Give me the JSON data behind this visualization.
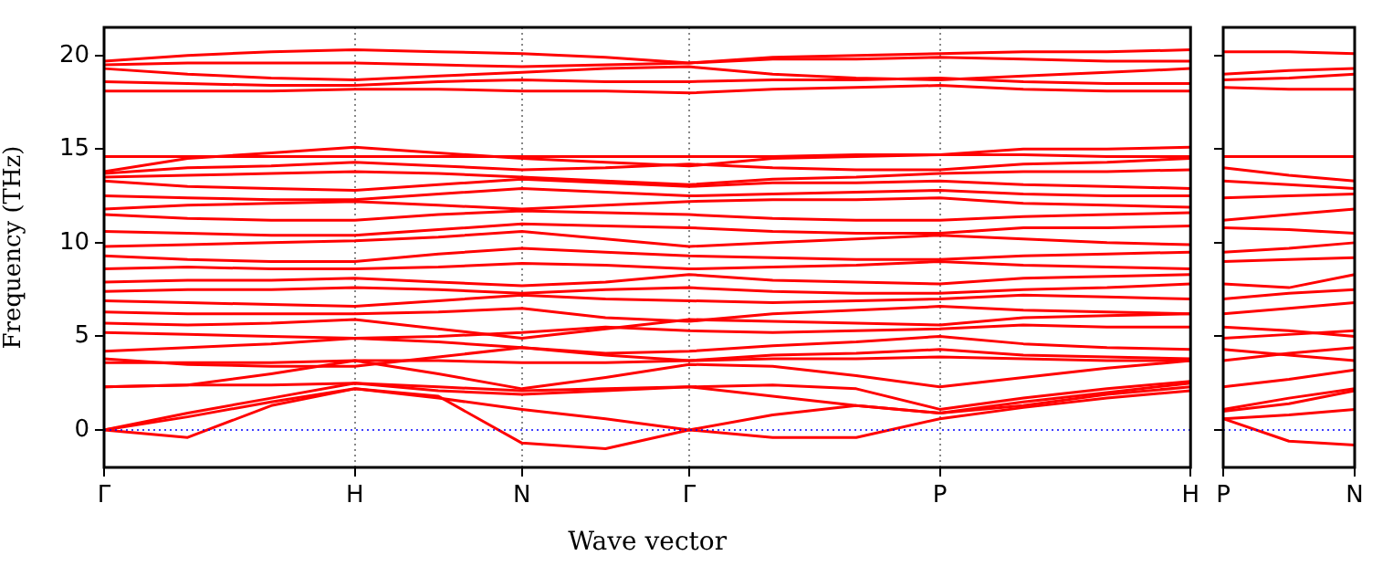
{
  "chart_data": [
    {
      "type": "line",
      "ylabel": "Frequency (THz)",
      "xlabel": "Wave vector",
      "ylim": [
        -2,
        21.5
      ],
      "categories": [
        "Γ",
        null,
        null,
        "H",
        null,
        "N",
        null,
        "Γ",
        null,
        null,
        "P",
        null,
        null,
        "H"
      ],
      "yticks": [
        0,
        5,
        10,
        15,
        20
      ],
      "grid": "x",
      "marker": "none",
      "line_style": "solid",
      "ref_lines": [
        {
          "axis": "y",
          "value": 0,
          "color": "#0000ff",
          "line_style": "dotted"
        }
      ],
      "series": [
        {
          "color": "#ff0000",
          "values": [
            0,
            -0.4,
            1.3,
            2.2,
            1.8,
            -0.7,
            -1.0,
            0,
            -0.4,
            -0.4,
            0.6,
            1.2,
            1.7,
            2.1
          ]
        },
        {
          "color": "#ff0000",
          "values": [
            0,
            0.7,
            1.5,
            2.2,
            1.7,
            1.1,
            0.6,
            0,
            0.8,
            1.3,
            0.9,
            1.5,
            2.0,
            2.5
          ]
        },
        {
          "color": "#ff0000",
          "values": [
            0,
            0.9,
            1.7,
            2.5,
            2.1,
            1.9,
            2.1,
            2.3,
            1.8,
            1.3,
            0.9,
            1.3,
            1.9,
            2.3
          ]
        },
        {
          "color": "#ff0000",
          "values": [
            2.3,
            2.4,
            2.4,
            2.5,
            2.3,
            2.1,
            2.2,
            2.3,
            2.4,
            2.2,
            1.1,
            1.7,
            2.2,
            2.6
          ]
        },
        {
          "color": "#ff0000",
          "values": [
            2.3,
            2.4,
            3.0,
            3.7,
            3.0,
            2.2,
            2.8,
            3.5,
            3.4,
            2.9,
            2.3,
            2.8,
            3.3,
            3.7
          ]
        },
        {
          "color": "#ff0000",
          "values": [
            3.6,
            3.6,
            3.6,
            3.7,
            3.7,
            3.6,
            3.6,
            3.7,
            3.8,
            3.8,
            3.9,
            3.8,
            3.7,
            3.7
          ]
        },
        {
          "color": "#ff0000",
          "values": [
            3.8,
            3.5,
            3.4,
            3.4,
            3.9,
            4.4,
            4.0,
            3.7,
            4.0,
            4.1,
            4.3,
            4.0,
            3.9,
            3.8
          ]
        },
        {
          "color": "#ff0000",
          "values": [
            4.2,
            4.4,
            4.6,
            4.9,
            4.7,
            4.4,
            4.1,
            4.2,
            4.5,
            4.7,
            5.0,
            4.6,
            4.4,
            4.3
          ]
        },
        {
          "color": "#ff0000",
          "values": [
            5.2,
            5.1,
            5.0,
            4.9,
            5.0,
            5.2,
            5.5,
            5.3,
            5.2,
            5.3,
            5.4,
            5.6,
            5.5,
            5.5
          ]
        },
        {
          "color": "#ff0000",
          "values": [
            5.7,
            5.6,
            5.7,
            5.9,
            5.4,
            4.9,
            5.4,
            5.9,
            5.8,
            5.7,
            5.6,
            6.0,
            6.1,
            6.2
          ]
        },
        {
          "color": "#ff0000",
          "values": [
            6.3,
            6.2,
            6.2,
            6.2,
            6.3,
            6.5,
            6.0,
            5.8,
            6.2,
            6.4,
            6.6,
            6.4,
            6.3,
            6.2
          ]
        },
        {
          "color": "#ff0000",
          "values": [
            6.9,
            6.8,
            6.7,
            6.6,
            6.9,
            7.2,
            7.0,
            6.9,
            6.8,
            6.9,
            7.0,
            7.2,
            7.1,
            7.0
          ]
        },
        {
          "color": "#ff0000",
          "values": [
            7.4,
            7.5,
            7.5,
            7.6,
            7.5,
            7.3,
            7.5,
            7.6,
            7.4,
            7.3,
            7.3,
            7.5,
            7.6,
            7.8
          ]
        },
        {
          "color": "#ff0000",
          "values": [
            7.9,
            8.0,
            8.0,
            8.1,
            7.9,
            7.7,
            7.9,
            8.3,
            8.0,
            7.9,
            7.8,
            8.1,
            8.2,
            8.3
          ]
        },
        {
          "color": "#ff0000",
          "values": [
            8.6,
            8.7,
            8.6,
            8.6,
            8.7,
            8.9,
            8.8,
            8.6,
            8.7,
            8.8,
            9.0,
            8.8,
            8.7,
            8.6
          ]
        },
        {
          "color": "#ff0000",
          "values": [
            9.3,
            9.1,
            9.0,
            9.0,
            9.4,
            9.7,
            9.5,
            9.3,
            9.2,
            9.1,
            9.1,
            9.3,
            9.4,
            9.5
          ]
        },
        {
          "color": "#ff0000",
          "values": [
            9.8,
            9.9,
            10.0,
            10.1,
            10.3,
            10.6,
            10.2,
            9.8,
            10.0,
            10.2,
            10.4,
            10.2,
            10.0,
            9.9
          ]
        },
        {
          "color": "#ff0000",
          "values": [
            10.6,
            10.5,
            10.4,
            10.4,
            10.7,
            11.0,
            10.9,
            10.8,
            10.6,
            10.5,
            10.5,
            10.8,
            10.8,
            10.9
          ]
        },
        {
          "color": "#ff0000",
          "values": [
            11.5,
            11.3,
            11.2,
            11.2,
            11.5,
            11.7,
            11.6,
            11.5,
            11.3,
            11.2,
            11.2,
            11.4,
            11.5,
            11.6
          ]
        },
        {
          "color": "#ff0000",
          "values": [
            11.8,
            12.0,
            12.1,
            12.2,
            12.0,
            11.8,
            12.0,
            12.2,
            12.3,
            12.3,
            12.4,
            12.1,
            12.0,
            11.9
          ]
        },
        {
          "color": "#ff0000",
          "values": [
            12.5,
            12.4,
            12.3,
            12.3,
            12.6,
            12.9,
            12.7,
            12.5,
            12.6,
            12.7,
            12.8,
            12.6,
            12.5,
            12.5
          ]
        },
        {
          "color": "#ff0000",
          "values": [
            13.3,
            13.0,
            12.9,
            12.8,
            13.1,
            13.4,
            13.2,
            13.0,
            13.2,
            13.2,
            13.3,
            13.1,
            13.0,
            12.9
          ]
        },
        {
          "color": "#ff0000",
          "values": [
            13.5,
            13.6,
            13.7,
            13.8,
            13.7,
            13.5,
            13.3,
            13.1,
            13.4,
            13.5,
            13.7,
            13.8,
            13.8,
            13.9
          ]
        },
        {
          "color": "#ff0000",
          "values": [
            13.7,
            14.0,
            14.1,
            14.3,
            14.1,
            13.9,
            14.0,
            14.2,
            14.0,
            13.9,
            13.9,
            14.2,
            14.3,
            14.5
          ]
        },
        {
          "color": "#ff0000",
          "values": [
            13.8,
            14.5,
            14.8,
            15.1,
            14.8,
            14.5,
            14.3,
            14.1,
            14.5,
            14.6,
            14.7,
            15.0,
            15.0,
            15.1
          ]
        },
        {
          "color": "#ff0000",
          "values": [
            14.6,
            14.6,
            14.6,
            14.6,
            14.6,
            14.6,
            14.6,
            14.6,
            14.6,
            14.7,
            14.7,
            14.7,
            14.6,
            14.6
          ]
        },
        {
          "color": "#ff0000",
          "values": [
            18.1,
            18.1,
            18.1,
            18.2,
            18.2,
            18.1,
            18.1,
            18.0,
            18.2,
            18.3,
            18.4,
            18.2,
            18.1,
            18.1
          ]
        },
        {
          "color": "#ff0000",
          "values": [
            18.6,
            18.5,
            18.4,
            18.4,
            18.6,
            18.7,
            18.6,
            18.6,
            18.7,
            18.7,
            18.8,
            18.6,
            18.5,
            18.5
          ]
        },
        {
          "color": "#ff0000",
          "values": [
            19.3,
            19.0,
            18.8,
            18.7,
            18.9,
            19.1,
            19.3,
            19.4,
            19.0,
            18.8,
            18.7,
            18.9,
            19.1,
            19.3
          ]
        },
        {
          "color": "#ff0000",
          "values": [
            19.5,
            19.6,
            19.6,
            19.6,
            19.5,
            19.4,
            19.5,
            19.6,
            19.8,
            19.8,
            19.9,
            19.8,
            19.7,
            19.7
          ]
        },
        {
          "color": "#ff0000",
          "values": [
            19.7,
            20.0,
            20.2,
            20.3,
            20.2,
            20.1,
            19.9,
            19.6,
            19.9,
            20.0,
            20.1,
            20.2,
            20.2,
            20.3
          ]
        }
      ]
    },
    {
      "type": "line",
      "ylim": [
        -2,
        21.5
      ],
      "categories": [
        "P",
        null,
        "N"
      ],
      "yticks": [
        0,
        5,
        10,
        15,
        20
      ],
      "tick_labels": "x",
      "marker": "none",
      "line_style": "solid",
      "ref_lines": [
        {
          "axis": "y",
          "value": 0,
          "color": "#0000ff",
          "line_style": "dotted"
        }
      ],
      "series": [
        {
          "color": "#ff0000",
          "values": [
            0.6,
            -0.6,
            -0.8
          ]
        },
        {
          "color": "#ff0000",
          "values": [
            0.6,
            0.8,
            1.1
          ]
        },
        {
          "color": "#ff0000",
          "values": [
            1.1,
            1.7,
            2.2
          ]
        },
        {
          "color": "#ff0000",
          "values": [
            1.0,
            1.4,
            2.1
          ]
        },
        {
          "color": "#ff0000",
          "values": [
            2.3,
            2.7,
            3.2
          ]
        },
        {
          "color": "#ff0000",
          "values": [
            3.7,
            4.1,
            4.4
          ]
        },
        {
          "color": "#ff0000",
          "values": [
            4.3,
            4.0,
            3.7
          ]
        },
        {
          "color": "#ff0000",
          "values": [
            4.9,
            5.1,
            5.3
          ]
        },
        {
          "color": "#ff0000",
          "values": [
            5.5,
            5.3,
            5.0
          ]
        },
        {
          "color": "#ff0000",
          "values": [
            6.2,
            6.5,
            6.8
          ]
        },
        {
          "color": "#ff0000",
          "values": [
            7.0,
            7.3,
            7.5
          ]
        },
        {
          "color": "#ff0000",
          "values": [
            7.8,
            7.6,
            8.3
          ]
        },
        {
          "color": "#ff0000",
          "values": [
            9.0,
            9.1,
            9.2
          ]
        },
        {
          "color": "#ff0000",
          "values": [
            9.5,
            9.7,
            10.0
          ]
        },
        {
          "color": "#ff0000",
          "values": [
            10.8,
            10.7,
            10.5
          ]
        },
        {
          "color": "#ff0000",
          "values": [
            11.2,
            11.5,
            11.8
          ]
        },
        {
          "color": "#ff0000",
          "values": [
            12.4,
            12.5,
            12.6
          ]
        },
        {
          "color": "#ff0000",
          "values": [
            13.3,
            13.1,
            12.9
          ]
        },
        {
          "color": "#ff0000",
          "values": [
            14.0,
            13.6,
            13.3
          ]
        },
        {
          "color": "#ff0000",
          "values": [
            14.6,
            14.6,
            14.6
          ]
        },
        {
          "color": "#ff0000",
          "values": [
            18.3,
            18.2,
            18.2
          ]
        },
        {
          "color": "#ff0000",
          "values": [
            18.7,
            18.8,
            19.0
          ]
        },
        {
          "color": "#ff0000",
          "values": [
            19.0,
            19.2,
            19.3
          ]
        },
        {
          "color": "#ff0000",
          "values": [
            20.2,
            20.2,
            20.1
          ]
        }
      ]
    }
  ]
}
